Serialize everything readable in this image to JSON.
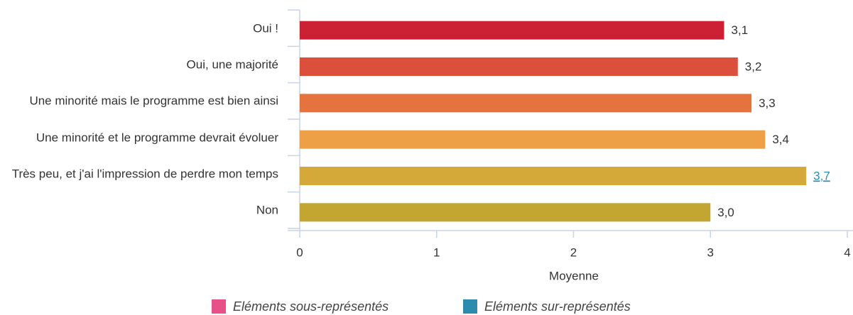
{
  "chart_data": {
    "type": "bar",
    "orientation": "horizontal",
    "categories": [
      "Oui !",
      "Oui, une majorité",
      "Une minorité mais le programme est bien ainsi",
      "Une minorité et le programme devrait évoluer",
      "Très peu, et j'ai l'impression de perdre mon temps",
      "Non"
    ],
    "values": [
      3.1,
      3.2,
      3.3,
      3.4,
      3.7,
      3.0
    ],
    "value_labels": [
      "3,1",
      "3,2",
      "3,3",
      "3,4",
      "3,7",
      "3,0"
    ],
    "colors": [
      "#cc2035",
      "#dc4f3b",
      "#e4733e",
      "#eea046",
      "#d4a93a",
      "#c3a531"
    ],
    "highlighted": [
      4
    ],
    "highlight_color": "#2e8bb0",
    "xlabel": "Moyenne",
    "xlim": [
      0,
      4
    ],
    "xticks": [
      0,
      1,
      2,
      3,
      4
    ],
    "legend": [
      {
        "name": "Eléments sous-représentés",
        "color": "#e8508a"
      },
      {
        "name": "Eléments sur-représentés",
        "color": "#2e8bb0"
      }
    ]
  }
}
